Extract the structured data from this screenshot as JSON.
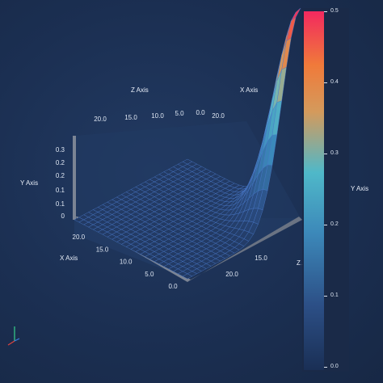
{
  "chart_data": {
    "type": "surface",
    "description_free": true,
    "axis_titles": {
      "x": "X Axis",
      "y": "Y Axis",
      "z": "Z Axis"
    },
    "x_ticks": [
      "0.0",
      "5.0",
      "10.0",
      "15.0",
      "20.0"
    ],
    "z_ticks": [
      "20.0",
      "15.0",
      "10.0",
      "5.0",
      "0.0"
    ],
    "z_ticks_front": [
      "15.0",
      "20.0"
    ],
    "y_ticks": [
      "0",
      "0.1",
      "0.1",
      "0.2",
      "0.2",
      "0.3"
    ],
    "xrange": [
      0,
      24
    ],
    "zrange": [
      0,
      24
    ],
    "yrange": [
      0,
      0.5
    ],
    "peak": {
      "x": 0,
      "z": 24,
      "y": 0.5
    },
    "colorbar": {
      "title": "Y Axis",
      "ticks": [
        "0.5",
        "0.4",
        "0.3",
        "0.2",
        "0.1",
        "0.0"
      ],
      "tick_values": [
        0.5,
        0.4,
        0.3,
        0.2,
        0.1,
        0.0
      ],
      "range": [
        0,
        0.5
      ],
      "colors": [
        "#1a2f55",
        "#3c7ab0",
        "#4bbfd0",
        "#d4a760",
        "#ee7c3c",
        "#ee2a5f"
      ]
    }
  }
}
